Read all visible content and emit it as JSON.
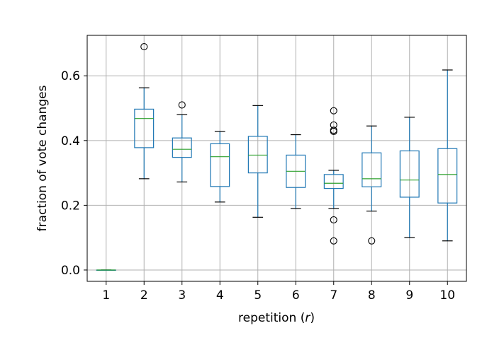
{
  "chart_data": {
    "type": "box",
    "xlabel_text": "repetition (",
    "xlabel_var": "r",
    "xlabel_close": ")",
    "ylabel": "fraction of vote changes",
    "ylim": [
      -0.035,
      0.725
    ],
    "yticks": [
      {
        "value": 0.0,
        "label": "0.0"
      },
      {
        "value": 0.2,
        "label": "0.2"
      },
      {
        "value": 0.4,
        "label": "0.4"
      },
      {
        "value": 0.6,
        "label": "0.6"
      }
    ],
    "categories": [
      "1",
      "2",
      "3",
      "4",
      "5",
      "6",
      "7",
      "8",
      "9",
      "10"
    ],
    "boxes": [
      {
        "category": "1",
        "whislo": 0.0,
        "q1": 0.0,
        "med": 0.0,
        "q3": 0.0,
        "whishi": 0.0,
        "fliers": []
      },
      {
        "category": "2",
        "whislo": 0.282,
        "q1": 0.378,
        "med": 0.468,
        "q3": 0.497,
        "whishi": 0.563,
        "fliers": [
          0.69
        ]
      },
      {
        "category": "3",
        "whislo": 0.272,
        "q1": 0.348,
        "med": 0.373,
        "q3": 0.408,
        "whishi": 0.48,
        "fliers": [
          0.51
        ]
      },
      {
        "category": "4",
        "whislo": 0.21,
        "q1": 0.258,
        "med": 0.35,
        "q3": 0.39,
        "whishi": 0.428,
        "fliers": []
      },
      {
        "category": "5",
        "whislo": 0.163,
        "q1": 0.3,
        "med": 0.355,
        "q3": 0.413,
        "whishi": 0.508,
        "fliers": []
      },
      {
        "category": "6",
        "whislo": 0.19,
        "q1": 0.255,
        "med": 0.305,
        "q3": 0.355,
        "whishi": 0.418,
        "fliers": []
      },
      {
        "category": "7",
        "whislo": 0.19,
        "q1": 0.252,
        "med": 0.268,
        "q3": 0.295,
        "whishi": 0.308,
        "fliers": [
          0.155,
          0.09,
          0.428,
          0.432,
          0.448,
          0.492
        ]
      },
      {
        "category": "8",
        "whislo": 0.182,
        "q1": 0.257,
        "med": 0.282,
        "q3": 0.362,
        "whishi": 0.445,
        "fliers": [
          0.09
        ]
      },
      {
        "category": "9",
        "whislo": 0.1,
        "q1": 0.225,
        "med": 0.278,
        "q3": 0.368,
        "whishi": 0.472,
        "fliers": []
      },
      {
        "category": "10",
        "whislo": 0.09,
        "q1": 0.207,
        "med": 0.295,
        "q3": 0.375,
        "whishi": 0.618,
        "fliers": []
      }
    ],
    "grid": true,
    "colors": {
      "box": "#1f77b4",
      "median": "#2ca02c",
      "whisker": "#000000",
      "grid": "#b0b0b0",
      "flier": "#000000"
    }
  }
}
